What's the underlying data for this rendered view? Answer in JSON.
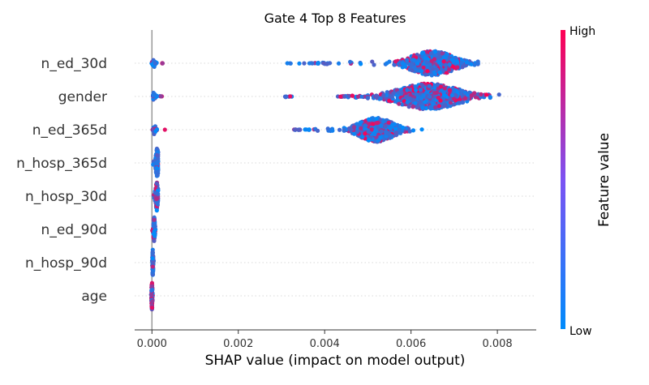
{
  "chart_data": {
    "type": "scatter",
    "subtype": "shap-beeswarm",
    "title": "Gate 4 Top 8 Features",
    "xlabel": "SHAP value (impact on model output)",
    "xlim": [
      -0.0004,
      0.0089
    ],
    "xticks": [
      0.0,
      0.002,
      0.004,
      0.006,
      0.008
    ],
    "xtick_labels": [
      "0.000",
      "0.002",
      "0.004",
      "0.006",
      "0.008"
    ],
    "grid": "horizontal dotted per feature",
    "zero_line": 0,
    "colorbar": {
      "label": "Feature value",
      "high_label": "High",
      "low_label": "Low",
      "low_color": "#008bfb",
      "high_color": "#ff0052",
      "placement": "right"
    },
    "features": [
      {
        "name": "n_ed_30d",
        "groups": [
          {
            "min": -1e-05,
            "max": 0.00012,
            "center": 4e-05,
            "count": 26,
            "width": 6,
            "high_share": 0.2
          },
          {
            "min": 0.00018,
            "max": 0.00025,
            "center": 0.0002,
            "count": 3,
            "width": 1,
            "high_share": 0.9
          },
          {
            "min": 0.00305,
            "max": 0.0049,
            "center": 0.0044,
            "count": 28,
            "width": 2,
            "high_share": 0.15
          },
          {
            "min": 0.0051,
            "max": 0.00755,
            "center": 0.0065,
            "count": 620,
            "width": 15,
            "high_share": 0.25
          }
        ]
      },
      {
        "name": "gender",
        "groups": [
          {
            "min": 1e-05,
            "max": 0.00012,
            "center": 5e-05,
            "count": 24,
            "width": 6,
            "high_share": 0.1
          },
          {
            "min": 0.00018,
            "max": 0.00025,
            "center": 0.0002,
            "count": 3,
            "width": 1,
            "high_share": 0.9
          },
          {
            "min": 0.00298,
            "max": 0.0033,
            "center": 0.0031,
            "count": 6,
            "width": 1,
            "high_share": 0.3
          },
          {
            "min": 0.0043,
            "max": 0.005,
            "center": 0.0047,
            "count": 28,
            "width": 2,
            "high_share": 0.3
          },
          {
            "min": 0.005,
            "max": 0.00845,
            "center": 0.0064,
            "count": 720,
            "width": 16,
            "high_share": 0.3
          }
        ]
      },
      {
        "name": "n_ed_365d",
        "groups": [
          {
            "min": 1e-05,
            "max": 0.00012,
            "center": 6e-05,
            "count": 34,
            "width": 6,
            "high_share": 0.15
          },
          {
            "min": 0.0003,
            "max": 0.0003,
            "center": 0.0003,
            "count": 1,
            "width": 0,
            "high_share": 1
          },
          {
            "min": 0.00325,
            "max": 0.0044,
            "center": 0.004,
            "count": 22,
            "width": 2,
            "high_share": 0.05
          },
          {
            "min": 0.00445,
            "max": 0.0064,
            "center": 0.0052,
            "count": 520,
            "width": 15,
            "high_share": 0.2
          }
        ]
      },
      {
        "name": "n_hosp_365d",
        "groups": [
          {
            "min": 0.0,
            "max": 0.00014,
            "center": 0.00012,
            "count": 110,
            "width": 18,
            "high_share": 0.05
          }
        ]
      },
      {
        "name": "n_hosp_30d",
        "groups": [
          {
            "min": 0.0,
            "max": 0.00014,
            "center": 0.00011,
            "count": 100,
            "width": 18,
            "high_share": 0.35
          }
        ]
      },
      {
        "name": "n_ed_90d",
        "groups": [
          {
            "min": 0.0,
            "max": 8e-05,
            "center": 5e-05,
            "count": 90,
            "width": 17,
            "high_share": 0.3
          }
        ]
      },
      {
        "name": "n_hosp_90d",
        "groups": [
          {
            "min": 0.0,
            "max": 4e-05,
            "center": 2e-05,
            "count": 80,
            "width": 16,
            "high_share": 0.2
          }
        ]
      },
      {
        "name": "age",
        "groups": [
          {
            "min": -2e-05,
            "max": 3e-05,
            "center": 0.0,
            "count": 110,
            "width": 17,
            "high_share": 0.65
          }
        ]
      }
    ]
  }
}
